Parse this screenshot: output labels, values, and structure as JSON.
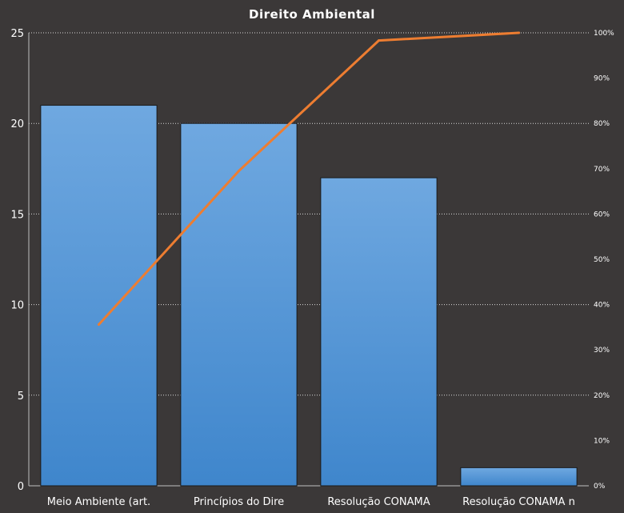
{
  "chart_data": {
    "type": "bar",
    "title": "Direito  Ambiental",
    "categories": [
      "Meio Ambiente (art.",
      "Princípios do Dire",
      "Resolução CONAMA",
      "Resolução CONAMA n"
    ],
    "series": [
      {
        "values": [
          21,
          20,
          17,
          1
        ]
      },
      {
        "values": [
          35.6,
          69.5,
          98.3,
          100
        ],
        "axis": "secondary",
        "type": "line"
      }
    ],
    "ylim": [
      0,
      25
    ],
    "yticks": [
      "0",
      "5",
      "10",
      "15",
      "20",
      "25"
    ],
    "y2lim": [
      0,
      100
    ],
    "y2ticks": [
      "0%",
      "10%",
      "20%",
      "30%",
      "40%",
      "50%",
      "60%",
      "70%",
      "80%",
      "90%",
      "100%"
    ],
    "grid": true,
    "legend": "none",
    "colors": {
      "background": "#3b3838",
      "bar_top": "#6fa8e0",
      "bar_bottom": "#3f86cc",
      "line": "#ed7d31",
      "grid": "#d9d9d9",
      "text": "#ffffff"
    }
  }
}
